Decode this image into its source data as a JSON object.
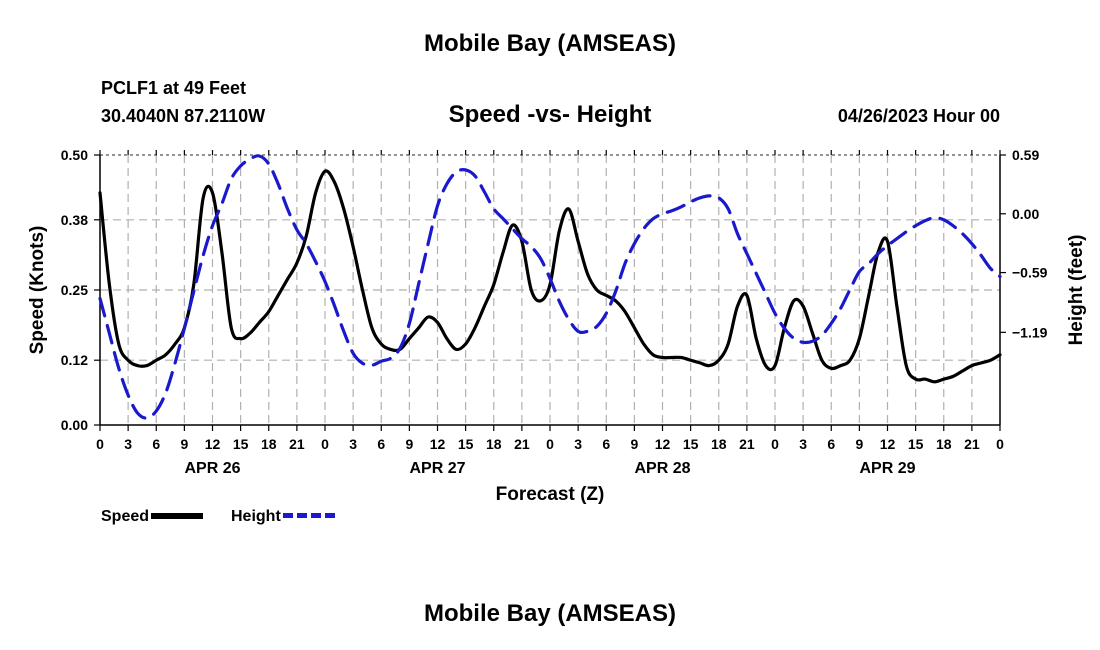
{
  "header": {
    "title": "Mobile Bay (AMSEAS)",
    "station": "PCLF1 at 49 Feet",
    "coordinates": "30.4040N  87.2110W",
    "subtitle": "Speed -vs- Height",
    "date": "04/26/2023 Hour 00"
  },
  "footer": {
    "title": "Mobile Bay (AMSEAS)"
  },
  "colors": {
    "speed": "#000000",
    "height": "#1a1acc",
    "grid": "#b0b0b0"
  },
  "chart_data": {
    "type": "line",
    "title": "Speed -vs- Height",
    "xlabel": "Forecast (Z)",
    "ylabel": "Speed (Knots)",
    "y2label": "Height (feet)",
    "xlim": [
      0,
      96
    ],
    "ylim": [
      0,
      0.5
    ],
    "y2lim": [
      -2.12,
      0.59
    ],
    "grid": true,
    "legend_position": "bottom-left",
    "x_tick_values": [
      0,
      3,
      6,
      9,
      12,
      15,
      18,
      21,
      24,
      27,
      30,
      33,
      36,
      39,
      42,
      45,
      48,
      51,
      54,
      57,
      60,
      63,
      66,
      69,
      72,
      75,
      78,
      81,
      84,
      87,
      90,
      93,
      96
    ],
    "x_tick_labels": [
      "0",
      "3",
      "6",
      "9",
      "12",
      "15",
      "18",
      "21",
      "0",
      "3",
      "6",
      "9",
      "12",
      "15",
      "18",
      "21",
      "0",
      "3",
      "6",
      "9",
      "12",
      "15",
      "18",
      "21",
      "0",
      "3",
      "6",
      "9",
      "12",
      "15",
      "18",
      "21",
      "0"
    ],
    "day_labels": [
      {
        "x": 12,
        "label": "APR 26"
      },
      {
        "x": 36,
        "label": "APR 27"
      },
      {
        "x": 60,
        "label": "APR 28"
      },
      {
        "x": 84,
        "label": "APR 29"
      }
    ],
    "y_ticks": [
      0.0,
      0.12,
      0.25,
      0.38,
      0.5
    ],
    "y_tick_labels": [
      "0.00",
      "0.12",
      "0.25",
      "0.38",
      "0.50"
    ],
    "y2_ticks": [
      0.59,
      0.0,
      -0.59,
      -1.19
    ],
    "y2_tick_labels": [
      "0.59",
      "0.00",
      "−0.59",
      "−1.19"
    ],
    "series": [
      {
        "name": "Speed",
        "axis": "left",
        "style": "solid",
        "x": [
          0,
          1,
          2,
          3,
          4,
          5,
          6,
          7,
          8,
          9,
          10,
          11,
          12,
          13,
          14,
          15,
          16,
          17,
          18,
          19,
          20,
          21,
          22,
          23,
          24,
          25,
          26,
          27,
          28,
          29,
          30,
          31,
          32,
          33,
          34,
          35,
          36,
          37,
          38,
          39,
          40,
          41,
          42,
          43,
          44,
          45,
          46,
          47,
          48,
          49,
          50,
          51,
          52,
          53,
          54,
          55,
          56,
          57,
          58,
          59,
          60,
          61,
          62,
          63,
          64,
          65,
          66,
          67,
          68,
          69,
          70,
          71,
          72,
          73,
          74,
          75,
          76,
          77,
          78,
          79,
          80,
          81,
          82,
          83,
          84,
          85,
          86,
          87,
          88,
          89,
          90,
          91,
          92,
          93,
          94,
          95,
          96
        ],
        "values": [
          0.43,
          0.26,
          0.15,
          0.12,
          0.11,
          0.11,
          0.12,
          0.13,
          0.15,
          0.18,
          0.26,
          0.42,
          0.43,
          0.32,
          0.18,
          0.16,
          0.17,
          0.19,
          0.21,
          0.24,
          0.27,
          0.3,
          0.35,
          0.43,
          0.47,
          0.45,
          0.4,
          0.33,
          0.25,
          0.18,
          0.15,
          0.14,
          0.14,
          0.16,
          0.18,
          0.2,
          0.19,
          0.16,
          0.14,
          0.15,
          0.18,
          0.22,
          0.26,
          0.32,
          0.37,
          0.34,
          0.25,
          0.23,
          0.26,
          0.36,
          0.4,
          0.34,
          0.28,
          0.25,
          0.24,
          0.23,
          0.21,
          0.18,
          0.15,
          0.13,
          0.125,
          0.125,
          0.125,
          0.12,
          0.115,
          0.11,
          0.12,
          0.15,
          0.22,
          0.24,
          0.16,
          0.11,
          0.11,
          0.18,
          0.23,
          0.22,
          0.17,
          0.12,
          0.105,
          0.11,
          0.12,
          0.16,
          0.24,
          0.32,
          0.34,
          0.22,
          0.11,
          0.085,
          0.085,
          0.08,
          0.085,
          0.09,
          0.1,
          0.11,
          0.115,
          0.12,
          0.13
        ]
      },
      {
        "name": "Height",
        "axis": "right",
        "style": "dashed",
        "x": [
          0,
          1,
          2,
          3,
          4,
          5,
          6,
          7,
          8,
          9,
          10,
          11,
          12,
          13,
          14,
          15,
          16,
          17,
          18,
          19,
          20,
          21,
          22,
          23,
          24,
          25,
          26,
          27,
          28,
          29,
          30,
          31,
          32,
          33,
          34,
          35,
          36,
          37,
          38,
          39,
          40,
          41,
          42,
          43,
          44,
          45,
          46,
          47,
          48,
          49,
          50,
          51,
          52,
          53,
          54,
          55,
          56,
          57,
          58,
          59,
          60,
          61,
          62,
          63,
          64,
          65,
          66,
          67,
          68,
          69,
          70,
          71,
          72,
          73,
          74,
          75,
          76,
          77,
          78,
          79,
          80,
          81,
          82,
          83,
          84,
          85,
          86,
          87,
          88,
          89,
          90,
          91,
          92,
          93,
          94,
          95,
          96
        ],
        "values": [
          -0.85,
          -1.2,
          -1.55,
          -1.82,
          -2.0,
          -2.05,
          -1.98,
          -1.8,
          -1.5,
          -1.15,
          -0.78,
          -0.42,
          -0.12,
          0.1,
          0.35,
          0.48,
          0.55,
          0.58,
          0.5,
          0.3,
          0.05,
          -0.16,
          -0.3,
          -0.48,
          -0.68,
          -0.92,
          -1.18,
          -1.4,
          -1.5,
          -1.52,
          -1.48,
          -1.45,
          -1.35,
          -1.1,
          -0.7,
          -0.3,
          0.08,
          0.3,
          0.42,
          0.44,
          0.38,
          0.22,
          0.05,
          -0.05,
          -0.15,
          -0.25,
          -0.33,
          -0.45,
          -0.65,
          -0.88,
          -1.06,
          -1.18,
          -1.18,
          -1.13,
          -1.0,
          -0.78,
          -0.5,
          -0.3,
          -0.15,
          -0.05,
          0.0,
          0.03,
          0.07,
          0.12,
          0.16,
          0.18,
          0.16,
          0.05,
          -0.2,
          -0.4,
          -0.6,
          -0.8,
          -1.0,
          -1.15,
          -1.25,
          -1.29,
          -1.28,
          -1.22,
          -1.1,
          -0.95,
          -0.76,
          -0.58,
          -0.5,
          -0.4,
          -0.32,
          -0.25,
          -0.18,
          -0.12,
          -0.07,
          -0.04,
          -0.06,
          -0.12,
          -0.2,
          -0.3,
          -0.42,
          -0.55,
          -0.63
        ]
      }
    ]
  },
  "legend": {
    "speed_label": "Speed",
    "height_label": "Height"
  }
}
